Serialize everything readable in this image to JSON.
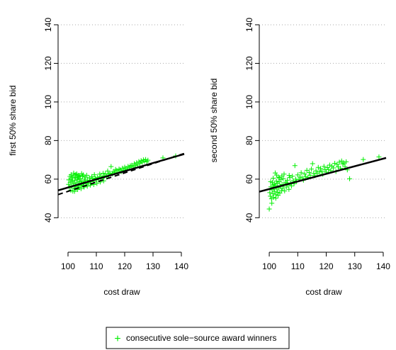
{
  "colors": {
    "points": "#00ee00",
    "fit_line": "#000000",
    "grid": "#aaaaaa"
  },
  "legend": {
    "marker": "+",
    "label": "consecutive sole−source award winners",
    "placement": "bottom-center"
  },
  "chart_data": [
    {
      "type": "scatter",
      "xlabel": "cost draw",
      "ylabel": "first 50% share bid",
      "xlim": [
        96.5,
        141
      ],
      "ylim": [
        28,
        151
      ],
      "xticks": [
        100,
        110,
        120,
        130,
        140
      ],
      "yticks": [
        40,
        60,
        80,
        100,
        120,
        140
      ],
      "xtick_labels": [
        "100",
        "110",
        "120",
        "130",
        "140"
      ],
      "ytick_labels": [
        "40",
        "60",
        "80",
        "100",
        "120",
        "140"
      ],
      "grid": "horizontal dotted",
      "series": [
        {
          "name": "consecutive sole−source award winners",
          "type": "scatter",
          "points": [
            [
              100.2,
              57.3
            ],
            [
              100.5,
              55.8
            ],
            [
              100.8,
              58.4
            ],
            [
              101.0,
              54.2
            ],
            [
              101.2,
              60.1
            ],
            [
              101.3,
              56.5
            ],
            [
              101.5,
              58.9
            ],
            [
              101.7,
              53.8
            ],
            [
              101.9,
              57.7
            ],
            [
              102.1,
              61.8
            ],
            [
              102.2,
              55.4
            ],
            [
              102.4,
              59.3
            ],
            [
              102.5,
              56.9
            ],
            [
              102.7,
              62.4
            ],
            [
              102.8,
              54.9
            ],
            [
              103.0,
              58.1
            ],
            [
              103.2,
              60.6
            ],
            [
              103.3,
              56.2
            ],
            [
              103.5,
              59.8
            ],
            [
              103.6,
              57.1
            ],
            [
              103.8,
              61.2
            ],
            [
              104.0,
              55.7
            ],
            [
              104.1,
              58.6
            ],
            [
              104.3,
              60.3
            ],
            [
              104.5,
              56.8
            ],
            [
              104.7,
              59.1
            ],
            [
              104.9,
              57.5
            ],
            [
              105.1,
              61.5
            ],
            [
              105.3,
              58.2
            ],
            [
              105.5,
              56.4
            ],
            [
              105.8,
              60.0
            ],
            [
              106.0,
              58.8
            ],
            [
              106.3,
              57.6
            ],
            [
              106.6,
              62.0
            ],
            [
              106.9,
              59.4
            ],
            [
              107.2,
              58.0
            ],
            [
              107.5,
              60.7
            ],
            [
              107.8,
              59.2
            ],
            [
              108.1,
              57.9
            ],
            [
              108.4,
              61.3
            ],
            [
              108.7,
              60.2
            ],
            [
              109.0,
              58.7
            ],
            [
              109.3,
              62.3
            ],
            [
              109.6,
              60.5
            ],
            [
              110.0,
              59.6
            ],
            [
              110.4,
              61.0
            ],
            [
              110.8,
              60.1
            ],
            [
              111.2,
              62.6
            ],
            [
              111.6,
              61.4
            ],
            [
              112.0,
              60.3
            ],
            [
              112.4,
              63.0
            ],
            [
              112.8,
              61.7
            ],
            [
              113.2,
              62.8
            ],
            [
              113.6,
              61.1
            ],
            [
              114.0,
              64.2
            ],
            [
              114.4,
              62.5
            ],
            [
              114.8,
              63.1
            ],
            [
              115.2,
              66.5
            ],
            [
              115.6,
              62.7
            ],
            [
              116.0,
              64.0
            ],
            [
              116.4,
              63.4
            ],
            [
              116.8,
              65.0
            ],
            [
              117.2,
              64.4
            ],
            [
              117.6,
              63.3
            ],
            [
              118.0,
              65.2
            ],
            [
              118.4,
              64.8
            ],
            [
              118.8,
              63.9
            ],
            [
              119.2,
              65.7
            ],
            [
              119.6,
              64.5
            ],
            [
              120.0,
              66.2
            ],
            [
              120.4,
              65.3
            ],
            [
              120.8,
              64.7
            ],
            [
              121.2,
              66.6
            ],
            [
              121.6,
              65.9
            ],
            [
              122.0,
              66.9
            ],
            [
              122.5,
              67.2
            ],
            [
              123.0,
              66.3
            ],
            [
              123.4,
              68.0
            ],
            [
              123.8,
              67.0
            ],
            [
              124.2,
              68.5
            ],
            [
              124.6,
              67.4
            ],
            [
              125.0,
              69.1
            ],
            [
              125.4,
              68.2
            ],
            [
              125.8,
              69.6
            ],
            [
              126.2,
              68.7
            ],
            [
              126.6,
              70.0
            ],
            [
              127.0,
              69.3
            ],
            [
              127.4,
              70.2
            ],
            [
              127.8,
              69.0
            ],
            [
              128.2,
              69.8
            ],
            [
              133.5,
              71.0
            ],
            [
              138.0,
              72.0
            ],
            [
              100.3,
              59.6
            ],
            [
              100.7,
              61.4
            ],
            [
              101.1,
              62.3
            ],
            [
              101.6,
              60.8
            ],
            [
              102.0,
              63.1
            ],
            [
              102.6,
              61.0
            ],
            [
              103.1,
              62.7
            ],
            [
              103.7,
              62.0
            ],
            [
              104.2,
              61.6
            ],
            [
              104.8,
              62.9
            ],
            [
              105.4,
              62.2
            ],
            [
              106.1,
              61.1
            ],
            [
              102.3,
              53.7
            ],
            [
              103.4,
              54.6
            ],
            [
              104.6,
              55.1
            ],
            [
              105.7,
              55.9
            ],
            [
              106.8,
              56.3
            ],
            [
              107.9,
              56.9
            ],
            [
              109.1,
              57.2
            ],
            [
              110.2,
              57.8
            ],
            [
              111.4,
              58.5
            ],
            [
              112.6,
              59.1
            ]
          ]
        }
      ],
      "fit_lines": [
        {
          "style": "solid",
          "x": [
            96.5,
            141
          ],
          "y": [
            54.2,
            73.0
          ]
        },
        {
          "style": "dashed",
          "x": [
            96.5,
            141
          ],
          "y": [
            52.0,
            73.3
          ]
        }
      ]
    },
    {
      "type": "scatter",
      "xlabel": "cost draw",
      "ylabel": "second 50% share bid",
      "xlim": [
        96.5,
        141
      ],
      "ylim": [
        28,
        151
      ],
      "xticks": [
        100,
        110,
        120,
        130,
        140
      ],
      "yticks": [
        40,
        60,
        80,
        100,
        120,
        140
      ],
      "xtick_labels": [
        "100",
        "110",
        "120",
        "130",
        "140"
      ],
      "ytick_labels": [
        "40",
        "60",
        "80",
        "100",
        "120",
        "140"
      ],
      "grid": "horizontal dotted",
      "series": [
        {
          "name": "consecutive sole−source award winners",
          "type": "scatter",
          "points": [
            [
              100.0,
              44.5
            ],
            [
              100.2,
              53.0
            ],
            [
              100.4,
              51.2
            ],
            [
              100.6,
              56.0
            ],
            [
              100.8,
              49.8
            ],
            [
              101.0,
              54.5
            ],
            [
              101.1,
              58.2
            ],
            [
              101.3,
              52.4
            ],
            [
              101.4,
              60.5
            ],
            [
              101.6,
              55.3
            ],
            [
              101.8,
              57.4
            ],
            [
              101.9,
              53.6
            ],
            [
              102.1,
              63.2
            ],
            [
              102.2,
              56.7
            ],
            [
              102.4,
              51.9
            ],
            [
              102.5,
              59.0
            ],
            [
              102.7,
              54.8
            ],
            [
              102.9,
              57.9
            ],
            [
              103.0,
              53.1
            ],
            [
              103.2,
              61.0
            ],
            [
              103.4,
              55.6
            ],
            [
              103.5,
              58.6
            ],
            [
              103.7,
              52.8
            ],
            [
              103.9,
              56.3
            ],
            [
              104.1,
              59.7
            ],
            [
              104.3,
              54.0
            ],
            [
              104.5,
              57.2
            ],
            [
              104.7,
              55.1
            ],
            [
              104.9,
              60.3
            ],
            [
              105.1,
              56.8
            ],
            [
              105.4,
              53.9
            ],
            [
              105.7,
              58.4
            ],
            [
              106.0,
              55.9
            ],
            [
              106.3,
              59.3
            ],
            [
              106.6,
              57.0
            ],
            [
              106.9,
              54.7
            ],
            [
              107.2,
              60.8
            ],
            [
              107.5,
              58.0
            ],
            [
              107.8,
              56.5
            ],
            [
              108.1,
              61.5
            ],
            [
              108.4,
              59.1
            ],
            [
              108.7,
              57.6
            ],
            [
              109.0,
              67.0
            ],
            [
              109.3,
              60.0
            ],
            [
              109.6,
              58.8
            ],
            [
              110.0,
              62.2
            ],
            [
              110.4,
              59.8
            ],
            [
              110.8,
              61.1
            ],
            [
              111.2,
              63.3
            ],
            [
              111.6,
              60.6
            ],
            [
              112.0,
              59.5
            ],
            [
              112.4,
              62.7
            ],
            [
              112.8,
              61.3
            ],
            [
              113.2,
              64.6
            ],
            [
              113.6,
              60.9
            ],
            [
              114.0,
              63.5
            ],
            [
              114.4,
              62.0
            ],
            [
              114.8,
              65.2
            ],
            [
              115.2,
              68.0
            ],
            [
              115.6,
              63.0
            ],
            [
              116.0,
              61.8
            ],
            [
              116.4,
              64.3
            ],
            [
              116.8,
              62.9
            ],
            [
              117.2,
              66.1
            ],
            [
              117.6,
              63.7
            ],
            [
              118.0,
              65.5
            ],
            [
              118.4,
              64.1
            ],
            [
              118.8,
              62.5
            ],
            [
              119.2,
              66.6
            ],
            [
              119.6,
              64.9
            ],
            [
              120.0,
              63.6
            ],
            [
              120.4,
              66.0
            ],
            [
              120.8,
              65.0
            ],
            [
              121.2,
              67.3
            ],
            [
              121.6,
              64.4
            ],
            [
              122.0,
              66.7
            ],
            [
              122.5,
              65.8
            ],
            [
              123.0,
              68.2
            ],
            [
              123.4,
              64.0
            ],
            [
              123.8,
              67.6
            ],
            [
              124.2,
              66.3
            ],
            [
              124.6,
              68.8
            ],
            [
              125.0,
              65.6
            ],
            [
              125.4,
              69.4
            ],
            [
              125.8,
              67.9
            ],
            [
              126.2,
              68.4
            ],
            [
              126.6,
              66.5
            ],
            [
              127.0,
              69.0
            ],
            [
              127.4,
              64.8
            ],
            [
              128.2,
              60.2
            ],
            [
              133.0,
              70.2
            ],
            [
              138.5,
              71.5
            ],
            [
              100.5,
              58.7
            ],
            [
              101.2,
              57.0
            ],
            [
              102.6,
              62.1
            ],
            [
              103.6,
              60.7
            ],
            [
              104.4,
              61.7
            ],
            [
              105.2,
              62.6
            ],
            [
              106.2,
              57.8
            ],
            [
              107.0,
              61.9
            ],
            [
              100.9,
              47.5
            ],
            [
              101.5,
              50.6
            ],
            [
              102.3,
              50.1
            ],
            [
              103.1,
              51.6
            ]
          ]
        }
      ],
      "fit_lines": [
        {
          "style": "solid",
          "x": [
            96.5,
            141
          ],
          "y": [
            53.5,
            71.0
          ]
        }
      ]
    }
  ]
}
